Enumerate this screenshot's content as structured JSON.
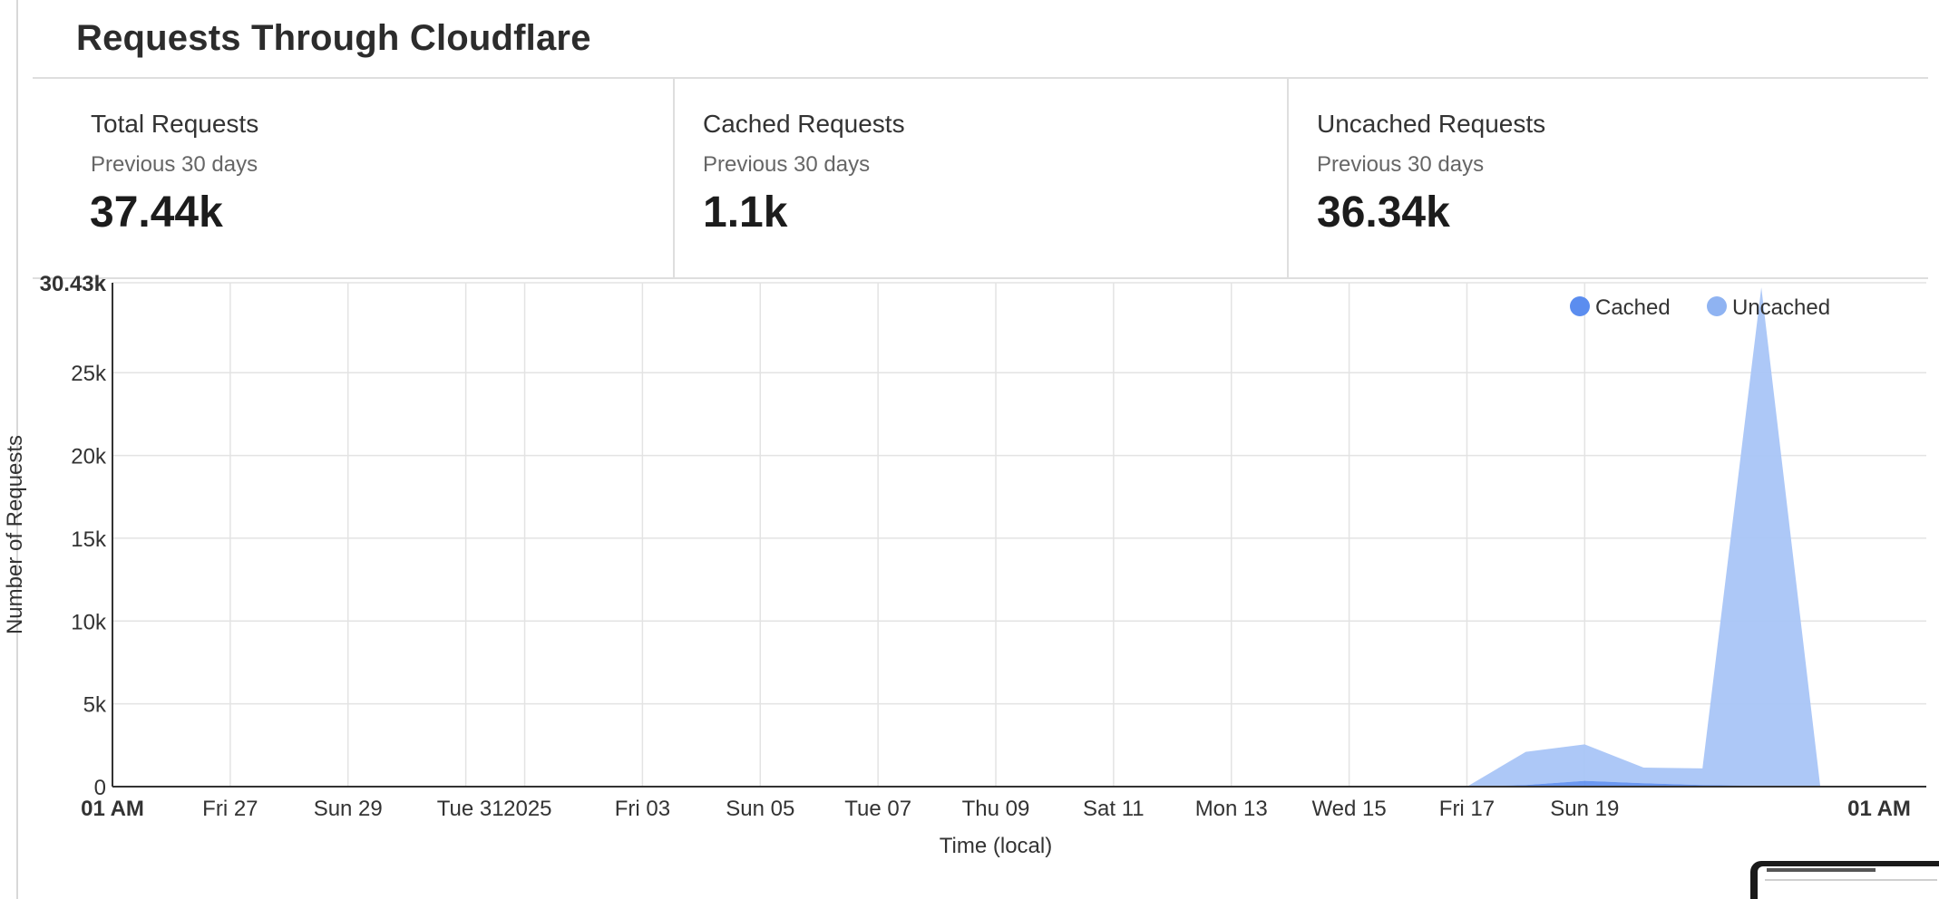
{
  "card": {
    "title": "Requests Through Cloudflare"
  },
  "stats": [
    {
      "label": "Total Requests",
      "period": "Previous 30 days",
      "value": "37.44k"
    },
    {
      "label": "Cached Requests",
      "period": "Previous 30 days",
      "value": "1.1k"
    },
    {
      "label": "Uncached Requests",
      "period": "Previous 30 days",
      "value": "36.34k"
    }
  ],
  "chart_data": {
    "type": "area",
    "stacked": true,
    "xlabel": "Time (local)",
    "ylabel": "Number of Requests",
    "ylim": [
      0,
      30430
    ],
    "y_ticks": [
      0,
      5000,
      10000,
      15000,
      20000,
      25000,
      30430
    ],
    "y_tick_labels": [
      "0",
      "5k",
      "10k",
      "15k",
      "20k",
      "25k",
      "30.43k"
    ],
    "x_ticks": [
      {
        "x": "2025-03-25",
        "label": "01 AM",
        "bold": true
      },
      {
        "x": "2025-03-27",
        "label": "Fri 27"
      },
      {
        "x": "2025-03-29",
        "label": "Sun 29"
      },
      {
        "x": "2025-03-31",
        "label": "Tue 31"
      },
      {
        "x": "2025-04-01",
        "label": "2025"
      },
      {
        "x": "2025-04-03",
        "label": "Fri 03"
      },
      {
        "x": "2025-04-05",
        "label": "Sun 05"
      },
      {
        "x": "2025-04-07",
        "label": "Tue 07"
      },
      {
        "x": "2025-04-09",
        "label": "Thu 09"
      },
      {
        "x": "2025-04-11",
        "label": "Sat 11"
      },
      {
        "x": "2025-04-13",
        "label": "Mon 13"
      },
      {
        "x": "2025-04-15",
        "label": "Wed 15"
      },
      {
        "x": "2025-04-17",
        "label": "Fri 17"
      },
      {
        "x": "2025-04-19",
        "label": "Sun 19"
      },
      {
        "x": "2025-04-24",
        "label": "01 AM",
        "bold": true
      }
    ],
    "x": [
      "2025-03-25",
      "2025-04-17",
      "2025-04-18",
      "2025-04-19",
      "2025-04-20",
      "2025-04-21",
      "2025-04-22"
    ],
    "x_end": "2025-04-23",
    "series": [
      {
        "name": "Cached",
        "color": "#5b8def",
        "values": [
          0,
          0,
          100,
          350,
          200,
          100,
          50
        ]
      },
      {
        "name": "Uncached",
        "color": "#a9c5f7",
        "values": [
          0,
          0,
          2000,
          2200,
          950,
          1000,
          30100
        ]
      }
    ],
    "legend": {
      "position": "top-right",
      "marker_colors": [
        "#5b8def",
        "#8fb3f2"
      ]
    },
    "grid": true
  }
}
